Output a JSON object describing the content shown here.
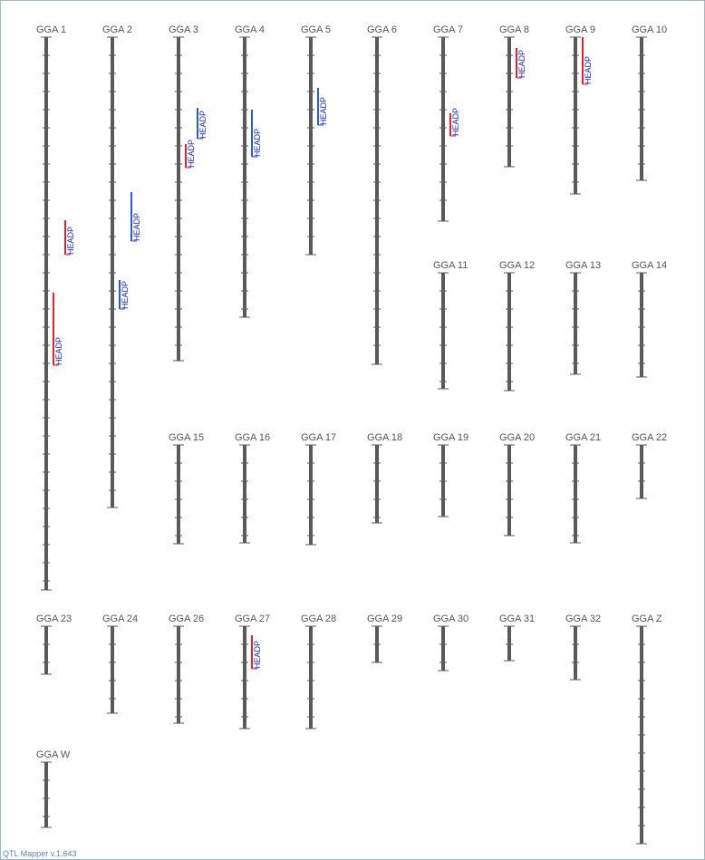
{
  "app": {
    "footer": "QTL Mapper v.1.643"
  },
  "colors": {
    "chromosome_bar": "#5a5a5a",
    "tick": "#5a5a5a",
    "chrom_label": "#555555",
    "qtl_red": "#e8202a",
    "qtl_blue": "#2a5bd7",
    "qtl_label": "#1a2ccc",
    "border": "#9db6d4"
  },
  "chromosomes": [
    {
      "name": "GGA 1"
    },
    {
      "name": "GGA 2"
    },
    {
      "name": "GGA 3"
    },
    {
      "name": "GGA 4"
    },
    {
      "name": "GGA 5"
    },
    {
      "name": "GGA 6"
    },
    {
      "name": "GGA 7"
    },
    {
      "name": "GGA 8"
    },
    {
      "name": "GGA 9"
    },
    {
      "name": "GGA 10"
    },
    {
      "name": "GGA 11"
    },
    {
      "name": "GGA 12"
    },
    {
      "name": "GGA 13"
    },
    {
      "name": "GGA 14"
    },
    {
      "name": "GGA 15"
    },
    {
      "name": "GGA 16"
    },
    {
      "name": "GGA 17"
    },
    {
      "name": "GGA 18"
    },
    {
      "name": "GGA 19"
    },
    {
      "name": "GGA 20"
    },
    {
      "name": "GGA 21"
    },
    {
      "name": "GGA 22"
    },
    {
      "name": "GGA 23"
    },
    {
      "name": "GGA 24"
    },
    {
      "name": "GGA 26"
    },
    {
      "name": "GGA 27"
    },
    {
      "name": "GGA 28"
    },
    {
      "name": "GGA 29"
    },
    {
      "name": "GGA 30"
    },
    {
      "name": "GGA 31"
    },
    {
      "name": "GGA 32"
    },
    {
      "name": "GGA Z"
    },
    {
      "name": "GGA W"
    }
  ],
  "qtls": [
    {
      "chrom": "GGA 1",
      "trait": "HEADP",
      "color": "red"
    },
    {
      "chrom": "GGA 1",
      "trait": "HEADP",
      "color": "red"
    },
    {
      "chrom": "GGA 2",
      "trait": "HEADP",
      "color": "blue"
    },
    {
      "chrom": "GGA 2",
      "trait": "HEADP",
      "color": "blue"
    },
    {
      "chrom": "GGA 3",
      "trait": "HEADP",
      "color": "red"
    },
    {
      "chrom": "GGA 3",
      "trait": "HEADP",
      "color": "blue"
    },
    {
      "chrom": "GGA 4",
      "trait": "HEADP",
      "color": "blue"
    },
    {
      "chrom": "GGA 5",
      "trait": "HEADP",
      "color": "blue"
    },
    {
      "chrom": "GGA 7",
      "trait": "HEADP",
      "color": "red"
    },
    {
      "chrom": "GGA 8",
      "trait": "HEADP",
      "color": "red"
    },
    {
      "chrom": "GGA 9",
      "trait": "HEADP",
      "color": "red"
    },
    {
      "chrom": "GGA 27",
      "trait": "HEADP",
      "color": "red"
    }
  ]
}
